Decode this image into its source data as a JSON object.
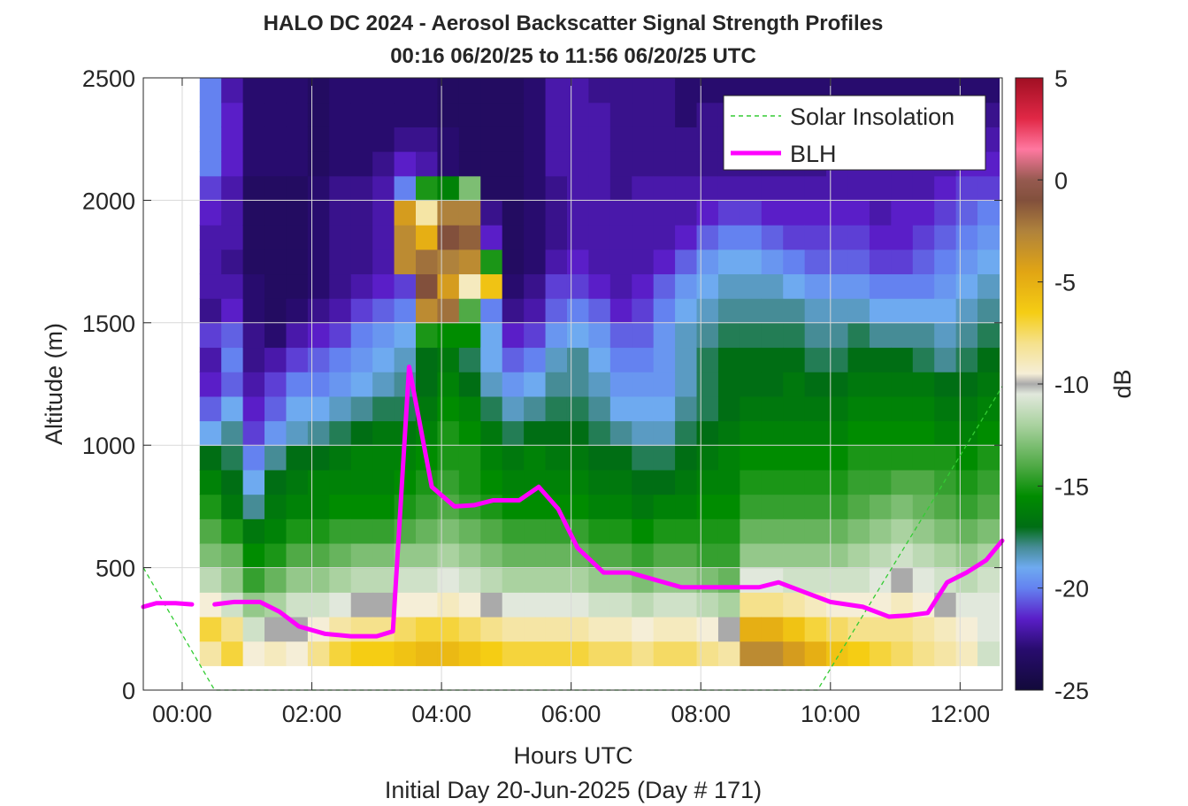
{
  "chart_data": {
    "type": "heatmap",
    "title": "HALO DC 2024 - Aerosol Backscatter Signal Strength Profiles",
    "subtitle": "00:16 06/20/25 to 11:56 06/20/25  UTC",
    "xlabel": "Hours UTC",
    "ylabel": "Altitude (m)",
    "footer": "Initial Day 20-Jun-2025 (Day # 171)",
    "xlim": [
      -0.6,
      12.65
    ],
    "ylim": [
      0,
      2500
    ],
    "x_ticks": [
      0,
      2,
      4,
      6,
      8,
      10,
      12
    ],
    "x_tick_labels": [
      "00:00",
      "02:00",
      "04:00",
      "06:00",
      "08:00",
      "10:00",
      "12:00"
    ],
    "y_ticks": [
      0,
      500,
      1000,
      1500,
      2000,
      2500
    ],
    "y_tick_labels": [
      "0",
      "500",
      "1000",
      "1500",
      "2000",
      "2500"
    ],
    "grid": true,
    "legend_placement": "top-right",
    "colorbar": {
      "label": "dB",
      "range": [
        -25,
        5
      ],
      "ticks": [
        -25,
        -20,
        -15,
        -10,
        -5,
        0,
        5
      ],
      "tick_labels": [
        "-25",
        "-20",
        "-15",
        "-10",
        "-5",
        "0",
        "5"
      ]
    },
    "heatmap": {
      "x_start": 0.27,
      "x_step": 0.3333,
      "altitudes_m": [
        150,
        250,
        350,
        450,
        550,
        650,
        750,
        850,
        950,
        1050,
        1150,
        1250,
        1350,
        1450,
        1550,
        1650,
        1750,
        1850,
        1950,
        2050,
        2150,
        2250,
        2350,
        2450
      ],
      "columns": [
        [
          -8.5,
          -7.0,
          -9.5,
          -11.5,
          -13.0,
          -14.0,
          -15.0,
          -16.0,
          -17.0,
          -19.0,
          -20.5,
          -21.5,
          -22.0,
          -21.0,
          -22.5,
          -22.0,
          -22.0,
          -22.0,
          -21.5,
          -21.0,
          -20.0,
          -20.0,
          -20.0,
          -20.0
        ],
        [
          -7.0,
          -8.0,
          -11.0,
          -12.5,
          -13.5,
          -15.0,
          -16.5,
          -17.0,
          -17.5,
          -18.0,
          -19.0,
          -20.5,
          -20.0,
          -20.5,
          -21.5,
          -22.0,
          -22.5,
          -22.0,
          -22.0,
          -22.0,
          -21.5,
          -21.5,
          -21.5,
          -22.0
        ],
        [
          -9.5,
          -11.0,
          -12.5,
          -14.5,
          -15.5,
          -16.5,
          -18.0,
          -19.0,
          -20.0,
          -21.0,
          -21.5,
          -22.0,
          -22.5,
          -22.5,
          -23.0,
          -23.0,
          -23.5,
          -23.5,
          -23.5,
          -23.5,
          -23.0,
          -23.0,
          -23.0,
          -23.0
        ],
        [
          -9.0,
          -10.0,
          -12.0,
          -13.5,
          -15.0,
          -16.0,
          -16.5,
          -17.0,
          -18.0,
          -19.5,
          -20.5,
          -21.0,
          -22.0,
          -23.0,
          -23.5,
          -23.5,
          -23.5,
          -23.5,
          -23.5,
          -23.5,
          -23.0,
          -23.0,
          -23.0,
          -23.0
        ],
        [
          -9.5,
          -10.0,
          -11.0,
          -12.5,
          -14.0,
          -15.0,
          -16.0,
          -16.5,
          -17.0,
          -18.5,
          -19.0,
          -20.0,
          -21.0,
          -22.0,
          -23.0,
          -23.5,
          -23.5,
          -23.5,
          -23.5,
          -23.5,
          -23.0,
          -23.0,
          -23.0,
          -23.0
        ],
        [
          -8.0,
          -9.5,
          -11.0,
          -12.5,
          -14.0,
          -15.0,
          -16.0,
          -16.0,
          -17.0,
          -18.0,
          -19.0,
          -20.0,
          -20.5,
          -21.5,
          -22.5,
          -23.0,
          -23.0,
          -23.0,
          -23.0,
          -23.0,
          -23.5,
          -23.5,
          -23.5,
          -23.5
        ],
        [
          -7.0,
          -8.5,
          -10.5,
          -12.0,
          -13.5,
          -14.5,
          -15.5,
          -16.0,
          -16.5,
          -17.5,
          -18.5,
          -19.5,
          -20.0,
          -21.0,
          -22.0,
          -22.5,
          -22.5,
          -22.5,
          -22.5,
          -22.5,
          -23.0,
          -23.0,
          -23.0,
          -23.0
        ],
        [
          -6.5,
          -8.0,
          -10.0,
          -11.5,
          -13.0,
          -14.5,
          -15.5,
          -16.0,
          -16.0,
          -17.0,
          -18.0,
          -19.0,
          -19.5,
          -20.0,
          -21.0,
          -22.0,
          -22.5,
          -22.5,
          -22.5,
          -22.5,
          -23.0,
          -23.0,
          -23.0,
          -23.0
        ],
        [
          -6.5,
          -8.0,
          -10.0,
          -11.5,
          -13.0,
          -14.5,
          -15.5,
          -16.0,
          -16.0,
          -16.5,
          -17.5,
          -18.5,
          -19.0,
          -19.5,
          -20.5,
          -21.5,
          -22.0,
          -22.0,
          -22.0,
          -22.0,
          -22.5,
          -23.0,
          -23.0,
          -23.0
        ],
        [
          -6.0,
          -7.5,
          -9.5,
          -11.0,
          -12.5,
          -14.0,
          -15.0,
          -15.5,
          -16.0,
          -16.5,
          -17.5,
          -18.0,
          -18.5,
          -19.0,
          -20.0,
          -21.0,
          -3.0,
          -3.0,
          -4.0,
          -20.0,
          -21.5,
          -22.5,
          -23.0,
          -23.0
        ],
        [
          -5.5,
          -7.0,
          -9.5,
          -11.0,
          -12.5,
          -13.5,
          -14.5,
          -15.0,
          -15.5,
          -16.0,
          -16.5,
          -17.0,
          -17.0,
          -15.0,
          -3.0,
          -1.0,
          -2.0,
          -5.0,
          -8.5,
          -15.0,
          -22.0,
          -22.5,
          -23.0,
          -23.0
        ],
        [
          -5.5,
          -7.0,
          -9.0,
          -10.5,
          -12.0,
          -13.0,
          -14.0,
          -14.5,
          -15.0,
          -15.0,
          -15.5,
          -16.0,
          -16.5,
          -15.5,
          -2.0,
          -4.0,
          -2.5,
          -1.0,
          -2.5,
          -16.0,
          -23.0,
          -23.0,
          -23.5,
          -23.5
        ],
        [
          -6.0,
          -7.5,
          -9.5,
          -11.0,
          -12.5,
          -13.5,
          -14.5,
          -15.0,
          -15.0,
          -15.5,
          -16.0,
          -17.0,
          -17.5,
          -15.5,
          -14.0,
          -9.0,
          -3.0,
          -1.5,
          -2.5,
          -13.0,
          -23.5,
          -23.5,
          -23.5,
          -23.5
        ],
        [
          -6.5,
          -8.0,
          -10.0,
          -11.5,
          -13.0,
          -14.0,
          -15.0,
          -15.5,
          -16.0,
          -16.5,
          -17.5,
          -18.5,
          -19.0,
          -19.0,
          -20.0,
          -6.0,
          -15.0,
          -21.5,
          -22.5,
          -23.5,
          -23.5,
          -23.5,
          -23.5,
          -23.5
        ],
        [
          -7.0,
          -8.5,
          -10.5,
          -12.0,
          -13.5,
          -14.5,
          -15.5,
          -16.0,
          -16.5,
          -17.5,
          -18.5,
          -19.5,
          -20.5,
          -21.5,
          -22.5,
          -23.0,
          -23.5,
          -23.5,
          -23.5,
          -23.5,
          -23.5,
          -23.5,
          -23.5,
          -23.5
        ],
        [
          -7.0,
          -8.5,
          -10.5,
          -12.0,
          -13.5,
          -14.5,
          -15.5,
          -16.0,
          -16.0,
          -17.0,
          -18.0,
          -19.0,
          -20.0,
          -21.0,
          -22.0,
          -22.5,
          -23.0,
          -23.0,
          -23.0,
          -23.0,
          -23.0,
          -23.0,
          -23.0,
          -23.0
        ],
        [
          -7.0,
          -8.5,
          -10.5,
          -12.0,
          -13.5,
          -14.5,
          -15.5,
          -16.0,
          -16.5,
          -17.0,
          -17.5,
          -18.0,
          -18.5,
          -19.5,
          -20.5,
          -21.0,
          -22.0,
          -22.5,
          -22.5,
          -22.5,
          -22.0,
          -22.0,
          -22.0,
          -22.0
        ],
        [
          -7.0,
          -8.5,
          -10.5,
          -12.0,
          -13.5,
          -14.5,
          -15.5,
          -16.0,
          -16.5,
          -17.0,
          -17.5,
          -18.0,
          -18.0,
          -19.0,
          -20.0,
          -21.0,
          -21.5,
          -22.0,
          -22.0,
          -22.0,
          -22.0,
          -22.0,
          -22.0,
          -22.0
        ],
        [
          -7.5,
          -9.0,
          -11.0,
          -12.5,
          -14.0,
          -15.0,
          -16.0,
          -16.5,
          -17.0,
          -17.5,
          -18.0,
          -18.5,
          -19.0,
          -19.5,
          -20.5,
          -21.5,
          -22.0,
          -22.0,
          -22.0,
          -22.0,
          -22.0,
          -22.0,
          -22.0,
          -22.5
        ],
        [
          -7.5,
          -9.0,
          -11.0,
          -12.5,
          -14.0,
          -15.0,
          -16.0,
          -16.5,
          -17.0,
          -18.0,
          -19.0,
          -19.5,
          -20.0,
          -20.5,
          -21.5,
          -22.0,
          -22.0,
          -22.0,
          -22.0,
          -22.5,
          -22.5,
          -22.5,
          -22.5,
          -22.5
        ],
        [
          -8.0,
          -9.5,
          -11.5,
          -13.0,
          -14.5,
          -15.5,
          -16.5,
          -17.0,
          -17.5,
          -18.5,
          -19.0,
          -19.5,
          -20.0,
          -20.5,
          -21.0,
          -21.5,
          -22.0,
          -22.0,
          -22.0,
          -22.0,
          -22.5,
          -22.5,
          -22.5,
          -22.5
        ],
        [
          -7.5,
          -9.0,
          -11.0,
          -12.5,
          -14.0,
          -15.0,
          -16.0,
          -17.0,
          -17.5,
          -18.5,
          -19.0,
          -19.5,
          -19.5,
          -19.5,
          -20.0,
          -20.5,
          -21.5,
          -22.0,
          -22.0,
          -22.0,
          -22.5,
          -22.5,
          -22.5,
          -22.5
        ],
        [
          -7.5,
          -9.0,
          -11.0,
          -12.5,
          -14.0,
          -15.0,
          -16.0,
          -16.5,
          -17.0,
          -17.5,
          -18.0,
          -18.5,
          -18.5,
          -18.5,
          -19.0,
          -19.5,
          -20.5,
          -21.5,
          -22.0,
          -22.0,
          -22.5,
          -22.5,
          -23.0,
          -23.0
        ],
        [
          -8.0,
          -9.5,
          -11.5,
          -13.0,
          -14.5,
          -15.0,
          -15.5,
          -16.0,
          -16.5,
          -17.0,
          -17.5,
          -17.5,
          -17.5,
          -18.0,
          -18.5,
          -19.0,
          -19.5,
          -20.5,
          -21.5,
          -22.0,
          -22.5,
          -22.5,
          -22.5,
          -23.0
        ],
        [
          -8.5,
          -10.0,
          -12.0,
          -13.5,
          -14.5,
          -15.0,
          -15.5,
          -16.0,
          -16.0,
          -16.5,
          -17.0,
          -17.0,
          -17.0,
          -17.5,
          -18.0,
          -18.5,
          -19.0,
          -20.0,
          -21.0,
          -22.0,
          -22.5,
          -22.5,
          -22.5,
          -23.0
        ],
        [
          -3.0,
          -5.0,
          -8.0,
          -10.5,
          -12.5,
          -13.5,
          -14.5,
          -15.0,
          -15.5,
          -16.0,
          -16.5,
          -17.0,
          -17.0,
          -17.5,
          -18.0,
          -18.5,
          -19.0,
          -20.0,
          -21.0,
          -22.0,
          -22.5,
          -22.5,
          -23.0,
          -23.0
        ],
        [
          -3.0,
          -5.0,
          -8.0,
          -10.5,
          -12.5,
          -13.5,
          -14.5,
          -15.0,
          -15.5,
          -16.0,
          -16.5,
          -17.0,
          -17.0,
          -17.5,
          -18.0,
          -18.5,
          -19.5,
          -20.5,
          -21.5,
          -22.0,
          -22.5,
          -22.5,
          -23.0,
          -23.0
        ],
        [
          -4.0,
          -6.0,
          -8.5,
          -11.0,
          -12.5,
          -13.5,
          -14.5,
          -15.0,
          -15.5,
          -16.0,
          -16.5,
          -16.5,
          -17.0,
          -17.5,
          -18.0,
          -19.0,
          -20.0,
          -21.0,
          -21.5,
          -22.0,
          -22.5,
          -22.5,
          -23.0,
          -23.0
        ],
        [
          -5.0,
          -7.0,
          -9.0,
          -11.0,
          -12.5,
          -13.5,
          -14.5,
          -15.0,
          -15.5,
          -16.0,
          -16.5,
          -17.0,
          -17.5,
          -18.0,
          -18.5,
          -19.5,
          -20.5,
          -21.0,
          -21.5,
          -22.0,
          -22.5,
          -22.5,
          -23.0,
          -23.0
        ],
        [
          -6.0,
          -7.5,
          -9.5,
          -11.0,
          -12.5,
          -13.5,
          -14.5,
          -15.0,
          -15.5,
          -16.0,
          -16.5,
          -17.0,
          -17.5,
          -18.0,
          -18.5,
          -19.5,
          -20.5,
          -21.0,
          -21.5,
          -22.0,
          -22.0,
          -22.5,
          -22.5,
          -23.0
        ],
        [
          -6.5,
          -8.0,
          -9.5,
          -11.0,
          -12.0,
          -13.0,
          -14.0,
          -14.5,
          -15.0,
          -15.5,
          -16.0,
          -16.5,
          -17.0,
          -17.5,
          -18.5,
          -19.5,
          -20.5,
          -21.0,
          -21.5,
          -22.0,
          -22.0,
          -22.5,
          -22.5,
          -23.0
        ],
        [
          -7.0,
          -8.0,
          -9.5,
          -10.5,
          -11.5,
          -12.5,
          -13.5,
          -14.5,
          -15.0,
          -15.5,
          -16.0,
          -16.5,
          -17.0,
          -18.0,
          -19.0,
          -20.0,
          -21.0,
          -21.5,
          -22.0,
          -22.0,
          -22.0,
          -22.5,
          -22.5,
          -23.0
        ],
        [
          -7.5,
          -8.0,
          -9.0,
          -10.0,
          -11.0,
          -12.0,
          -13.0,
          -14.0,
          -15.0,
          -15.5,
          -16.0,
          -16.5,
          -17.0,
          -18.0,
          -19.0,
          -20.0,
          -21.0,
          -21.5,
          -21.5,
          -22.0,
          -22.0,
          -22.5,
          -22.5,
          -23.0
        ],
        [
          -8.0,
          -8.5,
          -9.5,
          -10.5,
          -11.5,
          -12.5,
          -13.5,
          -14.0,
          -15.0,
          -15.5,
          -16.0,
          -16.5,
          -17.5,
          -18.0,
          -19.0,
          -20.0,
          -20.5,
          -21.0,
          -21.5,
          -22.0,
          -22.0,
          -22.5,
          -22.5,
          -23.0
        ],
        [
          -8.5,
          -9.0,
          -10.0,
          -11.0,
          -12.0,
          -13.0,
          -14.0,
          -14.5,
          -15.0,
          -16.0,
          -16.5,
          -17.0,
          -18.0,
          -18.5,
          -19.0,
          -19.5,
          -20.0,
          -20.5,
          -21.0,
          -21.5,
          -22.0,
          -22.5,
          -22.5,
          -23.0
        ],
        [
          -9.0,
          -9.5,
          -10.5,
          -11.5,
          -12.5,
          -13.5,
          -14.5,
          -15.0,
          -15.5,
          -16.0,
          -16.5,
          -17.0,
          -17.5,
          -18.0,
          -18.5,
          -19.0,
          -19.5,
          -20.0,
          -20.5,
          -21.0,
          -21.5,
          -22.0,
          -22.5,
          -23.0
        ],
        [
          -11.0,
          -10.5,
          -10.5,
          -11.0,
          -12.0,
          -13.0,
          -14.0,
          -14.5,
          -15.0,
          -15.5,
          -16.0,
          -16.5,
          -17.0,
          -17.5,
          -18.0,
          -18.5,
          -19.0,
          -19.5,
          -20.0,
          -21.0,
          -21.5,
          -22.0,
          -22.5,
          -23.0
        ]
      ]
    },
    "series": [
      {
        "name": "Solar Insolation",
        "color": "#33cc33",
        "style": "dashed",
        "x": [
          -0.6,
          0.5,
          9.8,
          12.65
        ],
        "y": [
          500,
          0,
          0,
          1240
        ]
      },
      {
        "name": "BLH",
        "color": "#ff00ff",
        "style": "solid",
        "segments": [
          {
            "x": [
              -0.6,
              -0.4,
              -0.1,
              0.15
            ],
            "y": [
              340,
              355,
              355,
              350
            ]
          },
          {
            "x": [
              0.5,
              0.8,
              1.2,
              1.5,
              1.8,
              2.2,
              2.6,
              3.0,
              3.25,
              3.5,
              3.85,
              4.2,
              4.5,
              4.8,
              5.2,
              5.5,
              5.8,
              6.1,
              6.5,
              6.9,
              7.3,
              7.7,
              8.1,
              8.5,
              8.9,
              9.2,
              9.6,
              10.0,
              10.5,
              10.9,
              11.2,
              11.5,
              11.8,
              12.1,
              12.4,
              12.65
            ],
            "y": [
              350,
              360,
              360,
              320,
              260,
              230,
              220,
              220,
              240,
              1320,
              830,
              750,
              755,
              775,
              775,
              830,
              740,
              580,
              480,
              480,
              450,
              420,
              420,
              420,
              420,
              440,
              400,
              360,
              340,
              300,
              305,
              315,
              440,
              480,
              530,
              610
            ]
          }
        ]
      }
    ],
    "legend": [
      "Solar Insolation",
      "BLH"
    ]
  }
}
